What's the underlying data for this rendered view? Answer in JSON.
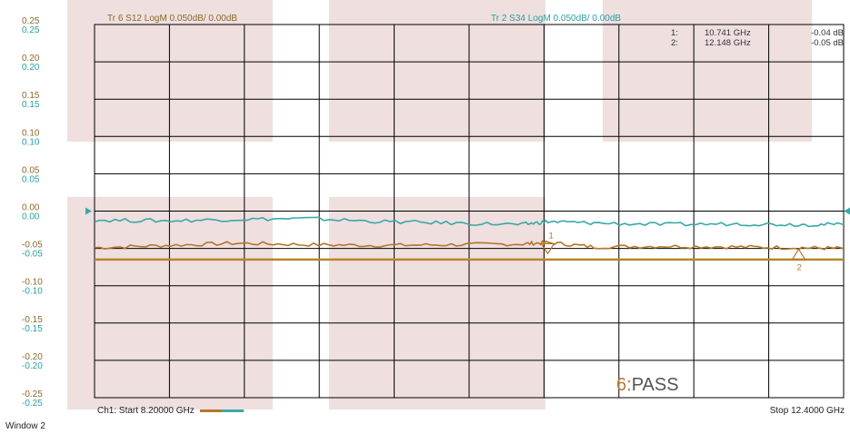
{
  "window_label": "Window 2",
  "trace_headers": [
    {
      "text": "Tr 6  S12 LogM 0.050dB/  0.00dB",
      "color": "#8a6a2a"
    },
    {
      "text": "Tr 2  S34 LogM 0.050dB/  0.00dB",
      "color": "#2a9fa0"
    }
  ],
  "channel_start": "Ch1: Start  8.20000 GHz",
  "stop_label": "Stop  12.4000 GHz",
  "status": {
    "number": "6:",
    "text": "PASS"
  },
  "markers_table": [
    {
      "id": "1:",
      "freq": "10.741 GHz",
      "value": "-0.04 dB"
    },
    {
      "id": "2:",
      "freq": "12.148 GHz",
      "value": "-0.05 dB"
    }
  ],
  "colors": {
    "s12": "#b5762a",
    "s34": "#3aa8a8",
    "limit": "#b8862a",
    "shade": "#efdfdf",
    "grid": "#000000",
    "tick_text_s12": "#8a6a2a",
    "tick_text_s34": "#2a9fa0"
  },
  "chart_data": {
    "type": "line",
    "x_range_ghz": [
      8.2,
      12.4
    ],
    "ylim": [
      -0.25,
      0.25
    ],
    "y_ticks": [
      "0.25",
      "0.20",
      "0.15",
      "0.10",
      "0.05",
      "0.00",
      "-0.05",
      "-0.10",
      "-0.15",
      "-0.20",
      "-0.25"
    ],
    "y_ticks_s34": [
      "0.25",
      "0.20",
      "0.15",
      "0.10",
      "0.05",
      "0.00",
      "-0.05",
      "-0.10",
      "-0.15",
      "-0.20",
      "-0.25"
    ],
    "grid": true,
    "limit_line": -0.065,
    "series": [
      {
        "name": "S12",
        "x": [
          8.2,
          8.6,
          9.0,
          9.4,
          9.8,
          10.2,
          10.6,
          10.741,
          11.0,
          11.4,
          11.8,
          12.148,
          12.4
        ],
        "y": [
          -0.049,
          -0.046,
          -0.043,
          -0.045,
          -0.046,
          -0.045,
          -0.044,
          -0.042,
          -0.048,
          -0.047,
          -0.048,
          -0.049,
          -0.05
        ]
      },
      {
        "name": "S34",
        "x": [
          8.2,
          8.6,
          9.0,
          9.4,
          9.8,
          10.2,
          10.6,
          10.741,
          11.0,
          11.4,
          11.8,
          12.148,
          12.4
        ],
        "y": [
          -0.012,
          -0.013,
          -0.011,
          -0.01,
          -0.014,
          -0.016,
          -0.018,
          -0.014,
          -0.016,
          -0.018,
          -0.017,
          -0.018,
          -0.018
        ]
      }
    ],
    "markers": [
      {
        "label": "1",
        "x": 10.741,
        "y": -0.04
      },
      {
        "label": "2",
        "x": 12.148,
        "y": -0.05
      }
    ]
  }
}
